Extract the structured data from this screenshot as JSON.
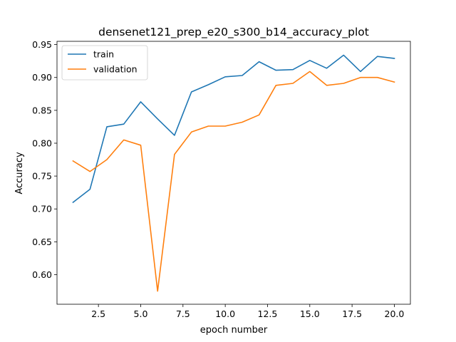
{
  "chart_data": {
    "type": "line",
    "title": "densenet121_prep_e20_s300_b14_accuracy_plot",
    "xlabel": "epoch number",
    "ylabel": "Accuracy",
    "xlim": [
      0.05,
      20.95
    ],
    "ylim": [
      0.555,
      0.955
    ],
    "xticks": [
      2.5,
      5.0,
      7.5,
      10.0,
      12.5,
      15.0,
      17.5,
      20.0
    ],
    "xtick_labels": [
      "2.5",
      "5.0",
      "7.5",
      "10.0",
      "12.5",
      "15.0",
      "17.5",
      "20.0"
    ],
    "yticks": [
      0.6,
      0.65,
      0.7,
      0.75,
      0.8,
      0.85,
      0.9,
      0.95
    ],
    "ytick_labels": [
      "0.60",
      "0.65",
      "0.70",
      "0.75",
      "0.80",
      "0.85",
      "0.90",
      "0.95"
    ],
    "grid": false,
    "legend_position": "top-left",
    "x": [
      1,
      2,
      3,
      4,
      5,
      6,
      7,
      8,
      9,
      10,
      11,
      12,
      13,
      14,
      15,
      16,
      17,
      18,
      19,
      20
    ],
    "series": [
      {
        "name": "train",
        "color": "#1f77b4",
        "values": [
          0.71,
          0.73,
          0.825,
          0.829,
          0.863,
          0.837,
          0.812,
          0.878,
          0.889,
          0.901,
          0.903,
          0.924,
          0.911,
          0.912,
          0.926,
          0.914,
          0.934,
          0.909,
          0.932,
          0.929
        ]
      },
      {
        "name": "validation",
        "color": "#ff7f0e",
        "values": [
          0.773,
          0.757,
          0.775,
          0.805,
          0.797,
          0.575,
          0.783,
          0.817,
          0.826,
          0.826,
          0.832,
          0.843,
          0.888,
          0.891,
          0.909,
          0.888,
          0.891,
          0.9,
          0.9,
          0.893
        ]
      }
    ]
  }
}
